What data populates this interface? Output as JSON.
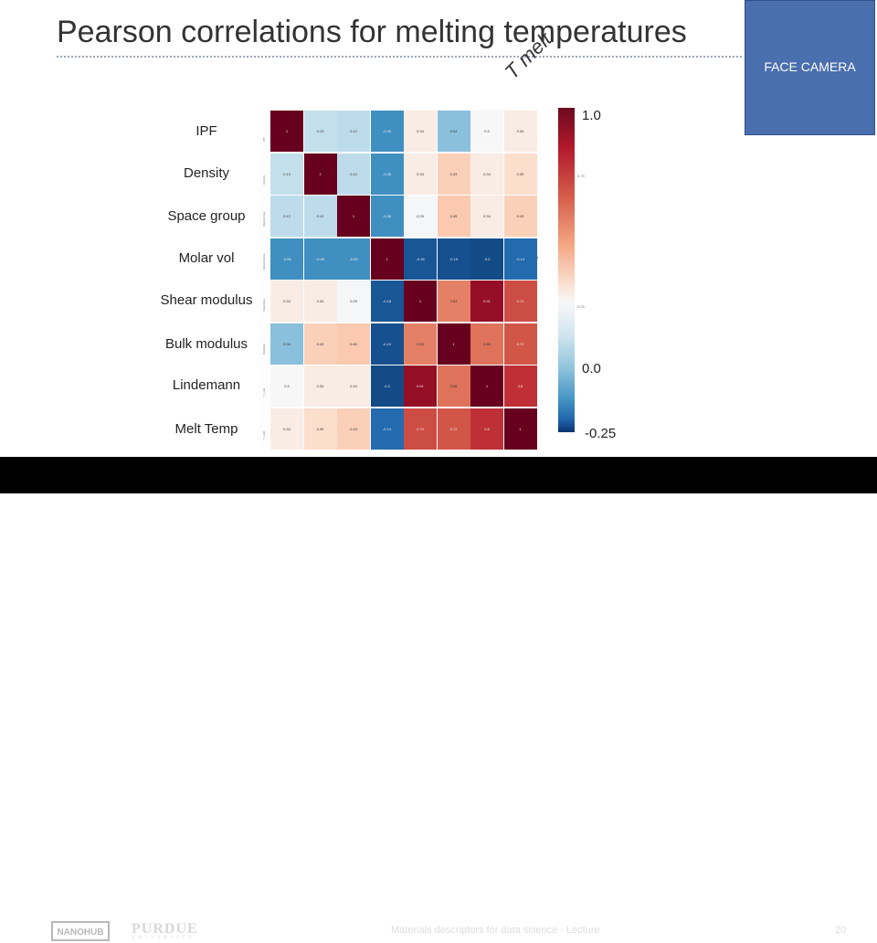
{
  "title": "Pearson correlations for melting temperatures",
  "target_label": "T melt",
  "camera_label": "FACE CAMERA",
  "features": [
    "IPF",
    "Density",
    "Space group",
    "Molar vol",
    "Shear modulus",
    "Bulk modulus",
    "Lindemann",
    "Melt Temp"
  ],
  "tick_labels": [
    "IPF",
    "Density",
    "SpaceGroup",
    "MolarVolume",
    "ShearMod",
    "BulkMod",
    "T_Lind",
    "T_melt"
  ],
  "correlation_matrix": [
    [
      1,
      0.13,
      0.12,
      -0.06,
      0.34,
      0.04,
      0.3,
      0.34
    ],
    [
      0.13,
      1,
      0.12,
      -0.06,
      0.34,
      0.43,
      0.34,
      0.39
    ],
    [
      0.12,
      0.12,
      1,
      -0.06,
      0.29,
      0.45,
      0.34,
      0.43
    ],
    [
      -0.06,
      -0.06,
      -0.06,
      1,
      -0.18,
      -0.19,
      -0.2,
      -0.14
    ],
    [
      0.34,
      0.34,
      0.29,
      -0.18,
      1,
      0.63,
      0.91,
      0.74
    ],
    [
      0.04,
      0.43,
      0.45,
      -0.19,
      0.63,
      1,
      0.66,
      0.72
    ],
    [
      0.3,
      0.34,
      0.34,
      -0.2,
      0.91,
      0.66,
      1,
      0.8
    ],
    [
      0.34,
      0.39,
      0.43,
      -0.14,
      0.74,
      0.72,
      0.8,
      1
    ]
  ],
  "tmelt_values": [
    "0.34",
    "0.39",
    "0.43",
    "-0.14",
    "0.74",
    "0.72",
    "0.8",
    "1"
  ],
  "colorbar": {
    "top_label": "1.0",
    "mid_label": "0.0",
    "bottom_label": "-0.25",
    "ticks": [
      "0.75",
      "0.25"
    ],
    "range": [
      -0.25,
      1.0
    ]
  },
  "colors": {
    "high": "#67001f",
    "mid": "#f7f7f7",
    "low": "#053061",
    "camera": "#4a6fae"
  },
  "footer": {
    "lab_logo": "NANOHUB",
    "university": "PURDUE",
    "university_sub": "UNIVERSITY",
    "course_text": "Materials descriptors for data science - Lecture",
    "page_number": "20"
  }
}
